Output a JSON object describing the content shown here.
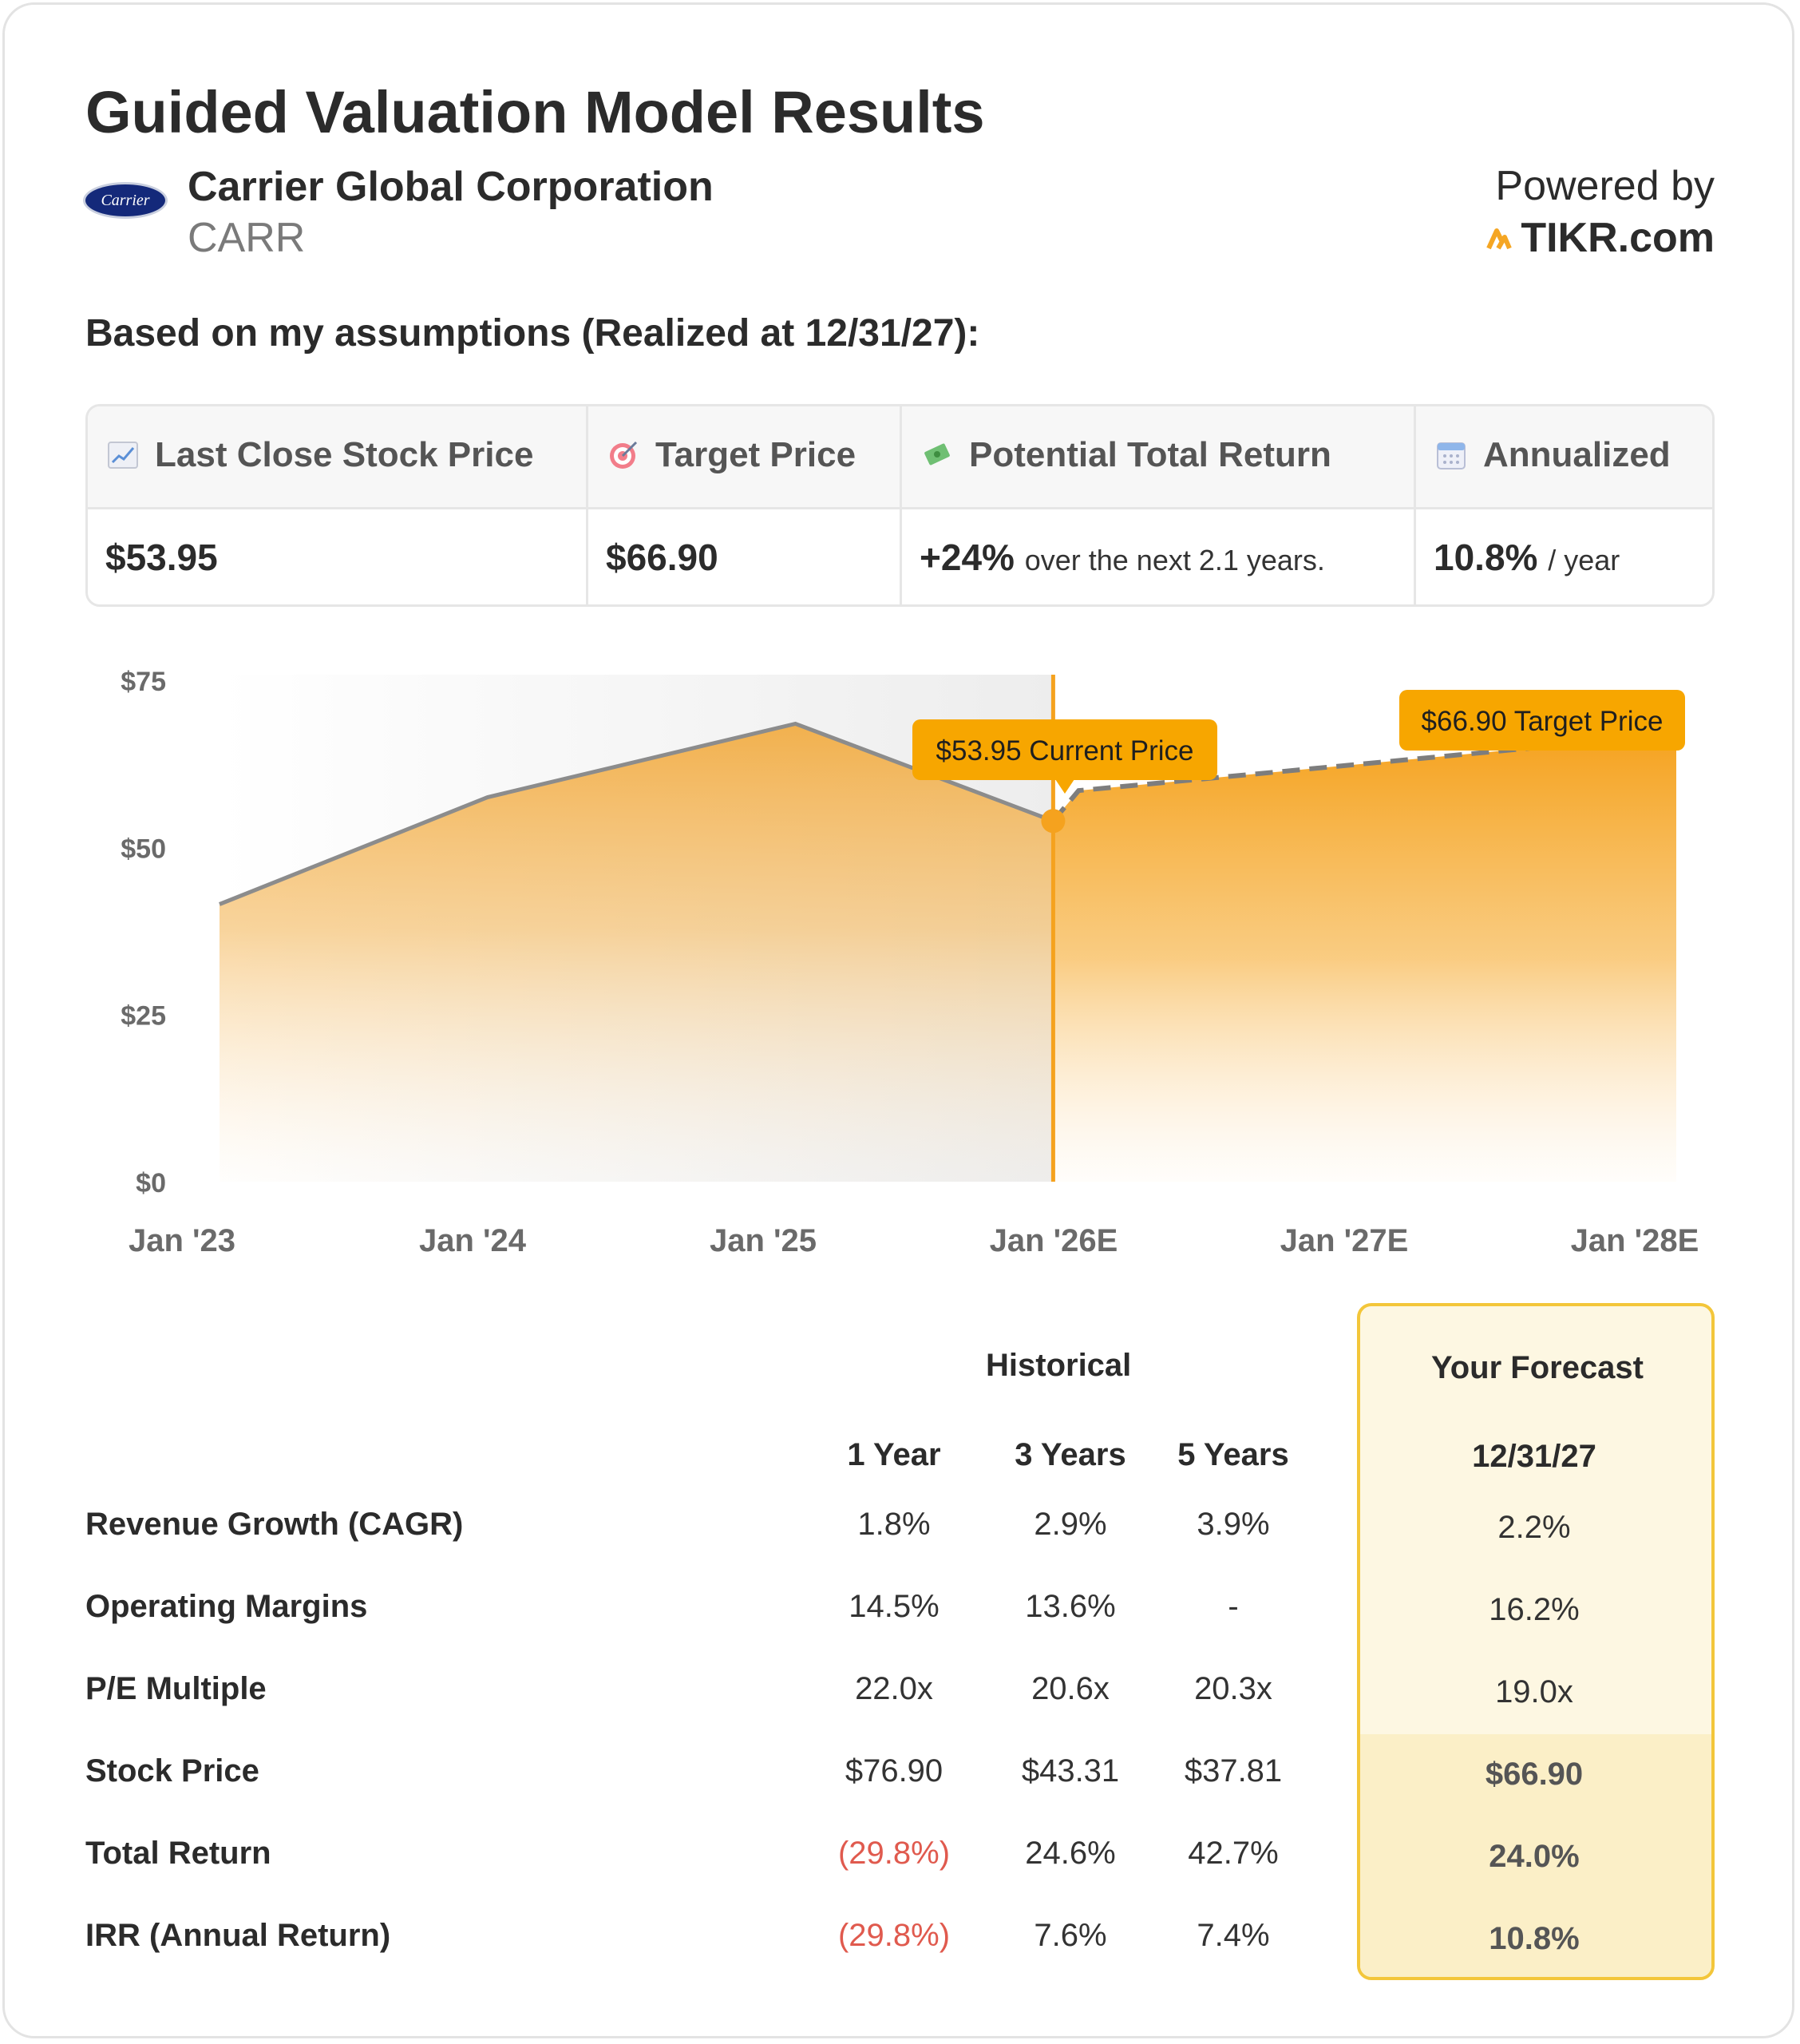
{
  "header": {
    "title": "Guided Valuation Model Results",
    "company_name": "Carrier Global Corporation",
    "ticker": "CARR",
    "logo_text": "Carrier",
    "powered_by": "Powered by",
    "brand": "TIKR.com",
    "assumption_line": "Based on my assumptions (Realized at 12/31/27):"
  },
  "summary": [
    {
      "label": "Last Close Stock Price",
      "icon": "chart-increasing-icon",
      "value": "$53.95",
      "suffix": ""
    },
    {
      "label": "Target Price",
      "icon": "target-icon",
      "value": "$66.90",
      "suffix": ""
    },
    {
      "label": "Potential Total Return",
      "icon": "money-with-wings-icon",
      "value": "+24%",
      "suffix": "over the next 2.1 years."
    },
    {
      "label": "Annualized",
      "icon": "calendar-icon",
      "value": "10.8%",
      "suffix": "/ year"
    }
  ],
  "chart_data": {
    "type": "area",
    "x": [
      "Jan '23",
      "Jan '24",
      "Jan '25",
      "Jan '26E",
      "Jan '27E",
      "Jan '28E"
    ],
    "y_ticks": [
      "$75",
      "$50",
      "$25",
      "$0"
    ],
    "ylim": [
      0,
      75
    ],
    "historical": [
      {
        "date": "2023-01-15",
        "value": 41.5
      },
      {
        "date": "2024-01-20",
        "value": 57.5
      },
      {
        "date": "2025-02-10",
        "value": 68.5
      },
      {
        "date": "2025-12-31",
        "value": 53.95
      }
    ],
    "forecast": [
      {
        "date": "2025-12-31",
        "value": 53.95
      },
      {
        "date": "2026-02-01",
        "value": 58.5
      },
      {
        "date": "2028-01-01",
        "value": 66.9
      }
    ],
    "current_label": "$53.95 Current Price",
    "target_label": "$66.90 Target Price",
    "accent": "#f5a623",
    "line_color": "#8c8c8c"
  },
  "table": {
    "historical_title": "Historical",
    "forecast_title": "Your Forecast",
    "columns": [
      "1 Year",
      "3 Years",
      "5 Years"
    ],
    "forecast_column": "12/31/27",
    "rows": [
      {
        "label": "Revenue Growth (CAGR)",
        "values": [
          "1.8%",
          "2.9%",
          "3.9%"
        ],
        "forecast": "2.2%"
      },
      {
        "label": "Operating Margins",
        "values": [
          "14.5%",
          "13.6%",
          "-"
        ],
        "forecast": "16.2%"
      },
      {
        "label": "P/E Multiple",
        "values": [
          "22.0x",
          "20.6x",
          "20.3x"
        ],
        "forecast": "19.0x"
      },
      {
        "label": "Stock Price",
        "values": [
          "$76.90",
          "$43.31",
          "$37.81"
        ],
        "forecast": "$66.90"
      },
      {
        "label": "Total Return",
        "values": [
          "(29.8%)",
          "24.6%",
          "42.7%"
        ],
        "forecast": "24.0%"
      },
      {
        "label": "IRR (Annual Return)",
        "values": [
          "(29.8%)",
          "7.6%",
          "7.4%"
        ],
        "forecast": "10.8%"
      }
    ],
    "negative_color": "#e05a4e"
  }
}
